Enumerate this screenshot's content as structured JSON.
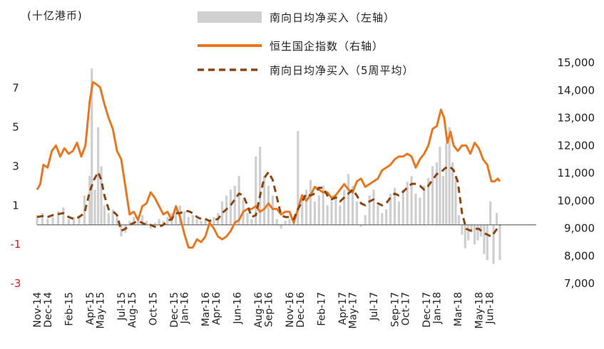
{
  "chart_data": {
    "type": "bar+line",
    "unit_label": "(十亿港币)",
    "legend": [
      {
        "name": "南向日均净买入（左轴",
        "suffix": "）",
        "kind": "bar",
        "color": "#cfcfcf"
      },
      {
        "name": "恒生国企指数（右轴",
        "suffix": "）",
        "kind": "line",
        "color": "#e87722"
      },
      {
        "name": "南向日均净买入（5周平均",
        "suffix": "）",
        "kind": "dashed",
        "color": "#8b4513"
      }
    ],
    "left_axis": {
      "min": -3,
      "max": 8.3,
      "ticks": [
        7,
        5,
        3,
        1,
        -1,
        -3
      ],
      "tick_labels": [
        "7",
        "5",
        "3",
        "1",
        "-1",
        "-3"
      ],
      "negative_color": "#d21f1f"
    },
    "right_axis": {
      "min": 7000,
      "max": 15000,
      "ticks": [
        15000,
        14000,
        13000,
        12000,
        11000,
        10000,
        9000,
        8000,
        7000
      ],
      "tick_labels": [
        "15,000",
        "14,000",
        "13,000",
        "12,000",
        "11,000",
        "10,000",
        "9,000",
        "8,000",
        "7,000"
      ]
    },
    "baseline_value": 0,
    "x_range": [
      0,
      48
    ],
    "x_labels": [
      {
        "t": 0,
        "label": "Nov-14"
      },
      {
        "t": 1,
        "label": "Dec-14"
      },
      {
        "t": 3,
        "label": "Feb-15"
      },
      {
        "t": 5,
        "label": "Apr-15"
      },
      {
        "t": 6,
        "label": "May-15"
      },
      {
        "t": 8,
        "label": "Jul-15"
      },
      {
        "t": 9,
        "label": "Aug-15"
      },
      {
        "t": 11,
        "label": "Oct-15"
      },
      {
        "t": 13,
        "label": "Dec-15"
      },
      {
        "t": 14,
        "label": "Jan-16"
      },
      {
        "t": 16,
        "label": "Mar-16"
      },
      {
        "t": 17,
        "label": "Apr-16"
      },
      {
        "t": 19,
        "label": "Jun-16"
      },
      {
        "t": 21,
        "label": "Aug-16"
      },
      {
        "t": 22,
        "label": "Sep-16"
      },
      {
        "t": 24,
        "label": "Nov-16"
      },
      {
        "t": 25,
        "label": "Dec-16"
      },
      {
        "t": 27,
        "label": "Feb-17"
      },
      {
        "t": 29,
        "label": "Apr-17"
      },
      {
        "t": 30,
        "label": "May-17"
      },
      {
        "t": 32,
        "label": "Jul-17"
      },
      {
        "t": 34,
        "label": "Sep-17"
      },
      {
        "t": 35,
        "label": "Oct-17"
      },
      {
        "t": 37,
        "label": "Dec-17"
      },
      {
        "t": 38,
        "label": "Jan-18"
      },
      {
        "t": 40,
        "label": "Mar-18"
      },
      {
        "t": 42,
        "label": "May-18"
      },
      {
        "t": 43,
        "label": "Jun-18"
      }
    ],
    "index_series": [
      [
        0.0,
        10400
      ],
      [
        0.3,
        10600
      ],
      [
        0.6,
        11300
      ],
      [
        1.0,
        11200
      ],
      [
        1.4,
        11800
      ],
      [
        1.8,
        12000
      ],
      [
        2.2,
        11600
      ],
      [
        2.6,
        11900
      ],
      [
        3.0,
        11700
      ],
      [
        3.4,
        11800
      ],
      [
        3.8,
        12100
      ],
      [
        4.2,
        11600
      ],
      [
        4.6,
        12000
      ],
      [
        5.0,
        13600
      ],
      [
        5.3,
        14300
      ],
      [
        5.7,
        14200
      ],
      [
        6.0,
        14100
      ],
      [
        6.4,
        13500
      ],
      [
        6.8,
        13000
      ],
      [
        7.2,
        12600
      ],
      [
        7.6,
        11800
      ],
      [
        8.0,
        11500
      ],
      [
        8.4,
        10500
      ],
      [
        8.8,
        9500
      ],
      [
        9.2,
        9600
      ],
      [
        9.6,
        9300
      ],
      [
        10.0,
        9800
      ],
      [
        10.4,
        9900
      ],
      [
        10.8,
        10300
      ],
      [
        11.2,
        10100
      ],
      [
        11.6,
        9800
      ],
      [
        12.0,
        9500
      ],
      [
        12.4,
        9600
      ],
      [
        12.8,
        9300
      ],
      [
        13.2,
        9800
      ],
      [
        13.6,
        9400
      ],
      [
        14.0,
        8800
      ],
      [
        14.4,
        8300
      ],
      [
        14.8,
        8300
      ],
      [
        15.2,
        8600
      ],
      [
        15.6,
        8500
      ],
      [
        16.0,
        8700
      ],
      [
        16.4,
        9200
      ],
      [
        16.8,
        9000
      ],
      [
        17.2,
        8700
      ],
      [
        17.6,
        8600
      ],
      [
        18.0,
        8700
      ],
      [
        18.4,
        8900
      ],
      [
        18.8,
        9200
      ],
      [
        19.2,
        9300
      ],
      [
        19.6,
        9600
      ],
      [
        20.0,
        9700
      ],
      [
        20.4,
        9700
      ],
      [
        20.8,
        9800
      ],
      [
        21.2,
        9600
      ],
      [
        21.6,
        9700
      ],
      [
        22.0,
        9900
      ],
      [
        22.4,
        9700
      ],
      [
        22.8,
        9700
      ],
      [
        23.2,
        9500
      ],
      [
        23.6,
        9600
      ],
      [
        24.0,
        9600
      ],
      [
        24.4,
        9200
      ],
      [
        24.8,
        9700
      ],
      [
        25.2,
        10200
      ],
      [
        25.6,
        10000
      ],
      [
        26.0,
        10200
      ],
      [
        26.4,
        10500
      ],
      [
        26.8,
        10400
      ],
      [
        27.2,
        10300
      ],
      [
        27.6,
        10300
      ],
      [
        28.0,
        10100
      ],
      [
        28.4,
        10200
      ],
      [
        28.8,
        10400
      ],
      [
        29.2,
        10600
      ],
      [
        29.6,
        10400
      ],
      [
        30.0,
        10300
      ],
      [
        30.4,
        10700
      ],
      [
        30.8,
        10800
      ],
      [
        31.2,
        10500
      ],
      [
        31.6,
        10600
      ],
      [
        32.0,
        10700
      ],
      [
        32.4,
        10800
      ],
      [
        32.8,
        11100
      ],
      [
        33.2,
        11200
      ],
      [
        33.6,
        11300
      ],
      [
        34.0,
        11500
      ],
      [
        34.4,
        11600
      ],
      [
        34.8,
        11600
      ],
      [
        35.2,
        11700
      ],
      [
        35.6,
        11600
      ],
      [
        36.0,
        11200
      ],
      [
        36.4,
        11500
      ],
      [
        36.8,
        11700
      ],
      [
        37.2,
        12000
      ],
      [
        37.6,
        12600
      ],
      [
        38.0,
        12700
      ],
      [
        38.4,
        13300
      ],
      [
        38.7,
        13000
      ],
      [
        39.0,
        12100
      ],
      [
        39.3,
        12500
      ],
      [
        39.6,
        12000
      ],
      [
        40.0,
        11800
      ],
      [
        40.4,
        12000
      ],
      [
        40.8,
        12000
      ],
      [
        41.2,
        11700
      ],
      [
        41.6,
        12100
      ],
      [
        42.0,
        11900
      ],
      [
        42.4,
        11500
      ],
      [
        42.8,
        11300
      ],
      [
        43.2,
        10700
      ],
      [
        43.5,
        10700
      ],
      [
        43.8,
        10800
      ],
      [
        44.0,
        10700
      ]
    ],
    "avg_series": [
      [
        0.0,
        0.4
      ],
      [
        0.5,
        0.45
      ],
      [
        1.0,
        0.4
      ],
      [
        1.5,
        0.5
      ],
      [
        2.0,
        0.55
      ],
      [
        2.5,
        0.6
      ],
      [
        3.0,
        0.4
      ],
      [
        3.5,
        0.3
      ],
      [
        4.0,
        0.4
      ],
      [
        4.5,
        0.6
      ],
      [
        5.0,
        1.7
      ],
      [
        5.4,
        2.3
      ],
      [
        5.8,
        2.7
      ],
      [
        6.1,
        2.3
      ],
      [
        6.4,
        1.5
      ],
      [
        6.8,
        0.8
      ],
      [
        7.2,
        0.7
      ],
      [
        7.6,
        0.5
      ],
      [
        8.0,
        -0.3
      ],
      [
        8.4,
        -0.2
      ],
      [
        8.8,
        0.0
      ],
      [
        9.2,
        0.1
      ],
      [
        9.6,
        0.2
      ],
      [
        10.0,
        0.1
      ],
      [
        10.4,
        0.0
      ],
      [
        10.8,
        0.0
      ],
      [
        11.2,
        -0.1
      ],
      [
        11.6,
        -0.1
      ],
      [
        12.0,
        0.0
      ],
      [
        12.4,
        0.2
      ],
      [
        12.8,
        0.3
      ],
      [
        13.2,
        0.6
      ],
      [
        13.6,
        0.6
      ],
      [
        14.0,
        0.7
      ],
      [
        14.4,
        0.7
      ],
      [
        14.8,
        0.6
      ],
      [
        15.2,
        0.4
      ],
      [
        15.6,
        0.3
      ],
      [
        16.0,
        0.3
      ],
      [
        16.4,
        0.2
      ],
      [
        16.8,
        0.25
      ],
      [
        17.2,
        0.3
      ],
      [
        17.6,
        0.6
      ],
      [
        18.0,
        0.8
      ],
      [
        18.4,
        1.0
      ],
      [
        18.8,
        1.3
      ],
      [
        19.2,
        1.6
      ],
      [
        19.6,
        1.5
      ],
      [
        20.0,
        1.0
      ],
      [
        20.4,
        0.4
      ],
      [
        20.8,
        0.5
      ],
      [
        21.2,
        1.5
      ],
      [
        21.6,
        2.4
      ],
      [
        22.0,
        2.7
      ],
      [
        22.4,
        2.3
      ],
      [
        22.8,
        1.4
      ],
      [
        23.2,
        0.5
      ],
      [
        23.6,
        0.4
      ],
      [
        24.0,
        0.4
      ],
      [
        24.4,
        0.3
      ],
      [
        24.8,
        0.8
      ],
      [
        25.2,
        1.2
      ],
      [
        25.6,
        1.6
      ],
      [
        26.0,
        1.5
      ],
      [
        26.4,
        1.6
      ],
      [
        26.8,
        1.9
      ],
      [
        27.2,
        1.9
      ],
      [
        27.6,
        1.5
      ],
      [
        28.0,
        1.3
      ],
      [
        28.4,
        1.4
      ],
      [
        28.8,
        1.2
      ],
      [
        29.2,
        1.4
      ],
      [
        29.6,
        1.6
      ],
      [
        30.0,
        1.8
      ],
      [
        30.4,
        1.5
      ],
      [
        30.8,
        1.1
      ],
      [
        31.2,
        1.0
      ],
      [
        31.6,
        1.2
      ],
      [
        32.0,
        1.3
      ],
      [
        32.4,
        1.1
      ],
      [
        32.8,
        1.0
      ],
      [
        33.2,
        1.1
      ],
      [
        33.6,
        1.4
      ],
      [
        34.0,
        1.6
      ],
      [
        34.4,
        1.5
      ],
      [
        34.8,
        1.7
      ],
      [
        35.2,
        1.9
      ],
      [
        35.6,
        2.1
      ],
      [
        36.0,
        2.1
      ],
      [
        36.4,
        2.0
      ],
      [
        36.8,
        1.8
      ],
      [
        37.2,
        2.0
      ],
      [
        37.6,
        2.3
      ],
      [
        38.0,
        2.6
      ],
      [
        38.4,
        2.7
      ],
      [
        38.8,
        2.9
      ],
      [
        39.2,
        3.0
      ],
      [
        39.6,
        2.8
      ],
      [
        40.0,
        2.2
      ],
      [
        40.4,
        0.6
      ],
      [
        40.8,
        -0.2
      ],
      [
        41.2,
        -0.3
      ],
      [
        41.6,
        -0.2
      ],
      [
        42.0,
        -0.2
      ],
      [
        42.4,
        -0.4
      ],
      [
        42.8,
        -0.5
      ],
      [
        43.2,
        -0.6
      ],
      [
        43.6,
        -0.3
      ],
      [
        44.0,
        0.0
      ]
    ],
    "bar_series": [
      [
        0.0,
        0.5
      ],
      [
        0.5,
        0.6
      ],
      [
        1.0,
        0.3
      ],
      [
        1.5,
        0.4
      ],
      [
        2.0,
        0.7
      ],
      [
        2.5,
        0.9
      ],
      [
        3.0,
        0.3
      ],
      [
        3.5,
        0.4
      ],
      [
        4.0,
        0.5
      ],
      [
        4.5,
        1.5
      ],
      [
        5.0,
        2.5
      ],
      [
        5.2,
        8.0
      ],
      [
        5.5,
        1.8
      ],
      [
        5.8,
        5.0
      ],
      [
        6.1,
        3.0
      ],
      [
        6.4,
        1.0
      ],
      [
        6.8,
        0.6
      ],
      [
        7.2,
        0.8
      ],
      [
        7.6,
        0.4
      ],
      [
        8.0,
        -0.6
      ],
      [
        8.4,
        -0.4
      ],
      [
        8.8,
        0.2
      ],
      [
        9.2,
        0.4
      ],
      [
        9.6,
        0.3
      ],
      [
        10.0,
        0.5
      ],
      [
        10.4,
        0.2
      ],
      [
        10.8,
        -0.2
      ],
      [
        11.2,
        0.1
      ],
      [
        11.6,
        0.3
      ],
      [
        12.0,
        0.2
      ],
      [
        12.4,
        0.4
      ],
      [
        12.8,
        0.6
      ],
      [
        13.2,
        0.8
      ],
      [
        13.6,
        1.0
      ],
      [
        14.0,
        0.7
      ],
      [
        14.4,
        0.4
      ],
      [
        14.8,
        0.5
      ],
      [
        15.2,
        0.3
      ],
      [
        15.6,
        0.2
      ],
      [
        16.0,
        0.3
      ],
      [
        16.4,
        0.1
      ],
      [
        16.8,
        0.4
      ],
      [
        17.2,
        0.6
      ],
      [
        17.6,
        1.2
      ],
      [
        18.0,
        1.5
      ],
      [
        18.4,
        1.8
      ],
      [
        18.8,
        2.0
      ],
      [
        19.2,
        2.5
      ],
      [
        19.6,
        1.3
      ],
      [
        20.0,
        0.6
      ],
      [
        20.4,
        0.3
      ],
      [
        20.8,
        3.5
      ],
      [
        21.2,
        4.0
      ],
      [
        21.6,
        2.5
      ],
      [
        22.0,
        2.0
      ],
      [
        22.4,
        1.5
      ],
      [
        22.8,
        0.3
      ],
      [
        23.2,
        -0.2
      ],
      [
        23.6,
        0.2
      ],
      [
        24.0,
        0.3
      ],
      [
        24.4,
        0.1
      ],
      [
        24.8,
        4.8
      ],
      [
        25.2,
        1.5
      ],
      [
        25.6,
        1.8
      ],
      [
        26.0,
        2.3
      ],
      [
        26.4,
        1.2
      ],
      [
        26.8,
        1.5
      ],
      [
        27.2,
        2.0
      ],
      [
        27.6,
        1.0
      ],
      [
        28.0,
        1.2
      ],
      [
        28.4,
        1.5
      ],
      [
        28.8,
        1.0
      ],
      [
        29.2,
        1.8
      ],
      [
        29.6,
        2.6
      ],
      [
        30.0,
        2.0
      ],
      [
        30.4,
        1.2
      ],
      [
        30.8,
        -0.1
      ],
      [
        31.2,
        0.5
      ],
      [
        31.6,
        1.5
      ],
      [
        32.0,
        1.8
      ],
      [
        32.4,
        1.0
      ],
      [
        32.8,
        0.6
      ],
      [
        33.2,
        0.8
      ],
      [
        33.6,
        1.6
      ],
      [
        34.0,
        1.9
      ],
      [
        34.4,
        1.2
      ],
      [
        34.8,
        1.8
      ],
      [
        35.2,
        2.2
      ],
      [
        35.6,
        2.5
      ],
      [
        36.0,
        1.6
      ],
      [
        36.4,
        1.4
      ],
      [
        36.8,
        2.0
      ],
      [
        37.2,
        2.4
      ],
      [
        37.6,
        3.0
      ],
      [
        38.0,
        3.2
      ],
      [
        38.3,
        4.0
      ],
      [
        38.6,
        2.5
      ],
      [
        38.9,
        4.2
      ],
      [
        39.2,
        5.0
      ],
      [
        39.5,
        3.2
      ],
      [
        39.8,
        2.5
      ],
      [
        40.1,
        0.5
      ],
      [
        40.4,
        -0.5
      ],
      [
        40.7,
        -1.2
      ],
      [
        41.0,
        -0.8
      ],
      [
        41.3,
        -0.4
      ],
      [
        41.6,
        -1.0
      ],
      [
        41.9,
        -0.8
      ],
      [
        42.2,
        -0.6
      ],
      [
        42.5,
        -1.5
      ],
      [
        42.8,
        -1.8
      ],
      [
        43.1,
        1.2
      ],
      [
        43.4,
        -2.0
      ],
      [
        43.7,
        0.6
      ],
      [
        44.0,
        -1.8
      ]
    ]
  }
}
